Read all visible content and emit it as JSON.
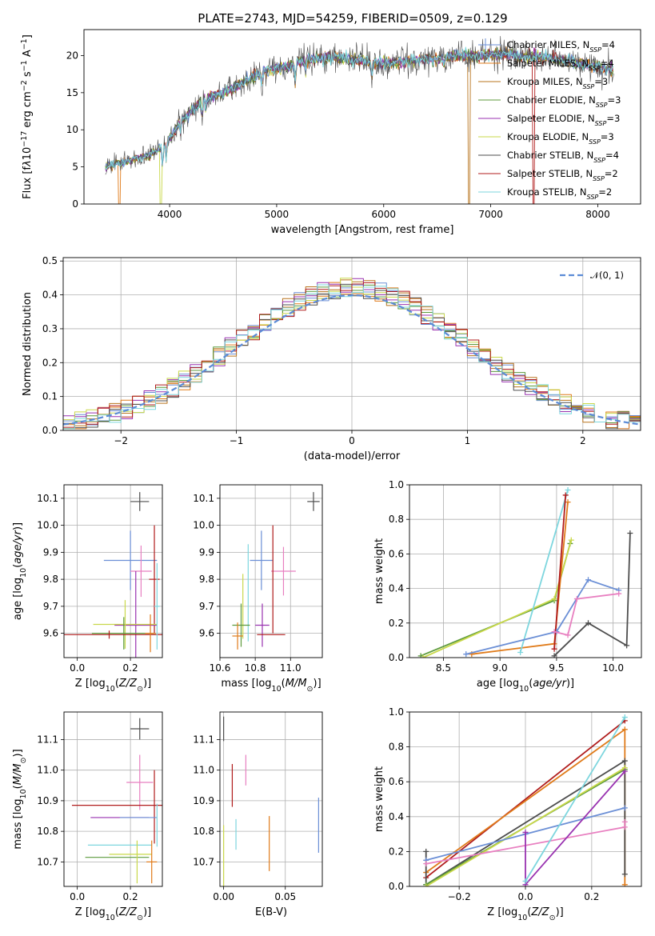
{
  "title": "PLATE=2743, MJD=54259, FIBERID=0509, z=0.129",
  "colors": {
    "Chabrier MILES": "#6b8fd6",
    "Salpeter MILES": "#e07b1a",
    "Kroupa MILES": "#b8741e",
    "Chabrier ELODIE": "#5c9a3c",
    "Salpeter ELODIE": "#9932b0",
    "Kroupa ELODIE": "#c9d84a",
    "Chabrier STELIB": "#4d4d4d",
    "Salpeter STELIB": "#b01c1c",
    "Kroupa STELIB": "#7dd6de",
    "pink": "#e87fc0",
    "normal": "#5b8bd6"
  },
  "chart_data": [
    {
      "id": "spectrum",
      "type": "line",
      "title": "PLATE=2743, MJD=54259, FIBERID=0509, z=0.129",
      "xlabel": "wavelength [Angstrom, rest frame]",
      "ylabel": "Flux [fλ10⁻¹⁷ erg cm⁻² s⁻¹ A⁻¹]",
      "xlim": [
        3200,
        8400
      ],
      "ylim": [
        0,
        23.5
      ],
      "xticks": [
        4000,
        5000,
        6000,
        7000,
        8000
      ],
      "yticks": [
        0,
        5,
        10,
        15,
        20
      ],
      "legend_position": "upper right",
      "legend": [
        {
          "name": "Chabrier MILES",
          "nssp": "4"
        },
        {
          "name": "Salpeter MILES",
          "nssp": "4"
        },
        {
          "name": "Kroupa MILES",
          "nssp": "3"
        },
        {
          "name": "Chabrier ELODIE",
          "nssp": "3"
        },
        {
          "name": "Salpeter ELODIE",
          "nssp": "3"
        },
        {
          "name": "Kroupa ELODIE",
          "nssp": "3"
        },
        {
          "name": "Chabrier STELIB",
          "nssp": "4"
        },
        {
          "name": "Salpeter STELIB",
          "nssp": "2"
        },
        {
          "name": "Kroupa STELIB",
          "nssp": "2"
        }
      ],
      "continuum_x": [
        3400,
        3600,
        3800,
        3950,
        4100,
        4300,
        4500,
        4700,
        4900,
        5100,
        5300,
        5500,
        5700,
        5900,
        6100,
        6300,
        6500,
        6700,
        6900,
        7100,
        7300,
        7500,
        7700,
        7900,
        8150
      ],
      "continuum_y": [
        5.0,
        5.8,
        6.5,
        8.0,
        11.0,
        14.0,
        15.0,
        16.5,
        18.0,
        18.5,
        19.5,
        19.8,
        19.5,
        19.0,
        19.0,
        19.3,
        19.6,
        20.0,
        20.0,
        20.2,
        20.0,
        19.8,
        19.3,
        18.8,
        18.0
      ],
      "edge_drops": [
        {
          "model": "Salpeter MILES",
          "x": 3530
        },
        {
          "model": "Kroupa ELODIE",
          "x": 3920
        },
        {
          "model": "Kroupa MILES",
          "x": 6800
        },
        {
          "model": "Salpeter STELIB",
          "x": 7400
        }
      ]
    },
    {
      "id": "residuals",
      "type": "histogram",
      "xlabel": "(data-model)/error",
      "ylabel": "Normed distribution",
      "xlim": [
        -2.5,
        2.5
      ],
      "ylim": [
        0,
        0.51
      ],
      "xticks": [
        -2,
        -1,
        0,
        1,
        2
      ],
      "yticks": [
        0.0,
        0.1,
        0.2,
        0.3,
        0.4,
        0.5
      ],
      "grid": true,
      "legend": [
        "𝒩(0, 1)"
      ],
      "legend_position": "upper right",
      "bin_width": 0.1
    },
    {
      "id": "age-vs-Z",
      "type": "errorbar",
      "xlabel": "Z [log₁₀(Z/Z⊙)]",
      "ylabel": "age  [log₁₀(age/yr)]",
      "xlim": [
        -0.05,
        0.32
      ],
      "ylim": [
        9.51,
        10.15
      ],
      "xticks": [
        0.0,
        0.2
      ],
      "yticks": [
        9.6,
        9.7,
        9.8,
        9.9,
        10.0,
        10.1
      ],
      "grid": true,
      "points": [
        {
          "c": "Chabrier STELIB",
          "x": 0.235,
          "y": 10.088,
          "xe": 0.035,
          "ye": 0.035
        },
        {
          "c": "Chabrier MILES",
          "x": 0.2,
          "y": 9.87,
          "xe": 0.1,
          "ye": 0.11
        },
        {
          "c": "pink",
          "x": 0.24,
          "y": 9.83,
          "xe": 0.04,
          "ye": 0.095
        },
        {
          "c": "Salpeter STELIB",
          "x": 0.29,
          "y": 9.8,
          "xe": 0.02,
          "ye": 0.2
        },
        {
          "c": "Salpeter ELODIE",
          "x": 0.22,
          "y": 9.63,
          "xe": 0.08,
          "ye": 0.2
        },
        {
          "c": "Kroupa ELODIE",
          "x": 0.18,
          "y": 9.633,
          "xe": 0.12,
          "ye": 0.09
        },
        {
          "c": "Chabrier ELODIE",
          "x": 0.175,
          "y": 9.6,
          "xe": 0.12,
          "ye": 0.06
        },
        {
          "c": "Salpeter STELIB",
          "x": 0.12,
          "y": 9.595,
          "xe": 0.2,
          "ye": 0.015
        },
        {
          "c": "Salpeter MILES",
          "x": 0.275,
          "y": 9.6,
          "xe": 0.02,
          "ye": 0.07
        },
        {
          "c": "Kroupa STELIB",
          "x": 0.3,
          "y": 9.7,
          "xe": 0.01,
          "ye": 0.16
        }
      ]
    },
    {
      "id": "age-vs-mass",
      "type": "errorbar",
      "xlabel": "mass [log₁₀(M/M⊙)]",
      "xlim": [
        10.6,
        11.18
      ],
      "ylim": [
        9.51,
        10.15
      ],
      "xticks": [
        10.6,
        10.8,
        11.0
      ],
      "yticks": [
        9.6,
        9.7,
        9.8,
        9.9,
        10.0,
        10.1
      ],
      "grid": true,
      "points": [
        {
          "c": "Chabrier STELIB",
          "x": 11.13,
          "y": 10.088,
          "xe": 0.035,
          "ye": 0.035
        },
        {
          "c": "Chabrier MILES",
          "x": 10.835,
          "y": 9.87,
          "xe": 0.065,
          "ye": 0.11
        },
        {
          "c": "pink",
          "x": 10.96,
          "y": 9.83,
          "xe": 0.07,
          "ye": 0.09
        },
        {
          "c": "Salpeter STELIB",
          "x": 10.9,
          "y": 9.8,
          "xe": 0.0,
          "ye": 0.2
        },
        {
          "c": "Kroupa STELIB",
          "x": 10.76,
          "y": 9.75,
          "xe": 0.0,
          "ye": 0.18
        },
        {
          "c": "Salpeter ELODIE",
          "x": 10.84,
          "y": 9.63,
          "xe": 0.04,
          "ye": 0.08
        },
        {
          "c": "Kroupa ELODIE",
          "x": 10.73,
          "y": 9.7,
          "xe": 0.0,
          "ye": 0.12
        },
        {
          "c": "Chabrier ELODIE",
          "x": 10.72,
          "y": 9.63,
          "xe": 0.05,
          "ye": 0.08
        },
        {
          "c": "Salpeter MILES",
          "x": 10.7,
          "y": 9.59,
          "xe": 0.03,
          "ye": 0.05
        },
        {
          "c": "Salpeter STELIB",
          "x": 10.89,
          "y": 9.595,
          "xe": 0.08,
          "ye": 0.0
        }
      ]
    },
    {
      "id": "weight-vs-age",
      "type": "line",
      "xlabel": "age  [log₁₀(age/yr)]",
      "ylabel": "mass weight",
      "xlim": [
        8.2,
        10.25
      ],
      "ylim": [
        0,
        1.0
      ],
      "xticks": [
        8.5,
        9.0,
        9.5,
        10.0
      ],
      "yticks": [
        0.0,
        0.2,
        0.4,
        0.6,
        0.8,
        1.0
      ],
      "grid": true,
      "series": [
        {
          "c": "Chabrier ELODIE",
          "x": [
            8.3,
            9.48,
            9.62
          ],
          "y": [
            0.01,
            0.33,
            0.66
          ]
        },
        {
          "c": "Kroupa ELODIE",
          "x": [
            8.32,
            9.48,
            9.63
          ],
          "y": [
            0.0,
            0.34,
            0.68
          ]
        },
        {
          "c": "Salpeter MILES",
          "x": [
            8.75,
            9.48,
            9.6
          ],
          "y": [
            0.02,
            0.08,
            0.9
          ]
        },
        {
          "c": "Kroupa STELIB",
          "x": [
            9.18,
            9.6
          ],
          "y": [
            0.03,
            0.97
          ]
        },
        {
          "c": "Salpeter STELIB",
          "x": [
            9.48,
            9.58
          ],
          "y": [
            0.05,
            0.94
          ]
        },
        {
          "c": "Chabrier MILES",
          "x": [
            8.7,
            9.5,
            9.78,
            10.05
          ],
          "y": [
            0.02,
            0.15,
            0.45,
            0.39
          ]
        },
        {
          "c": "pink",
          "x": [
            9.48,
            9.6,
            9.68,
            10.05
          ],
          "y": [
            0.15,
            0.13,
            0.34,
            0.37
          ]
        },
        {
          "c": "Chabrier STELIB",
          "x": [
            9.48,
            9.78,
            10.12,
            10.15
          ],
          "y": [
            0.01,
            0.2,
            0.07,
            0.72
          ]
        }
      ]
    },
    {
      "id": "mass-vs-Z",
      "type": "errorbar",
      "xlabel": "Z [log₁₀(Z/Z⊙)]",
      "ylabel": "mass [log₁₀(M/M⊙)]",
      "xlim": [
        -0.05,
        0.32
      ],
      "ylim": [
        10.62,
        11.19
      ],
      "xticks": [
        0.0,
        0.2
      ],
      "yticks": [
        10.7,
        10.8,
        10.9,
        11.0,
        11.1
      ],
      "grid": true,
      "points": [
        {
          "c": "Chabrier STELIB",
          "x": 0.235,
          "y": 11.135,
          "xe": 0.035,
          "ye": 0.035
        },
        {
          "c": "pink",
          "x": 0.235,
          "y": 10.96,
          "xe": 0.05,
          "ye": 0.09
        },
        {
          "c": "Salpeter STELIB",
          "x": 0.15,
          "y": 10.885,
          "xe": 0.17,
          "ye": 0.0
        },
        {
          "c": "Salpeter STELIB",
          "x": 0.29,
          "y": 10.88,
          "xe": 0.0,
          "ye": 0.12
        },
        {
          "c": "Salpeter ELODIE",
          "x": 0.16,
          "y": 10.845,
          "xe": 0.11,
          "ye": 0.0
        },
        {
          "c": "Chabrier MILES",
          "x": 0.23,
          "y": 10.845,
          "xe": 0.07,
          "ye": 0.0
        },
        {
          "c": "Kroupa STELIB",
          "x": 0.16,
          "y": 10.755,
          "xe": 0.12,
          "ye": 0.0
        },
        {
          "c": "Kroupa ELODIE",
          "x": 0.2,
          "y": 10.725,
          "xe": 0.08,
          "ye": 0.0
        },
        {
          "c": "Chabrier ELODIE",
          "x": 0.15,
          "y": 10.715,
          "xe": 0.12,
          "ye": 0.0
        },
        {
          "c": "Salpeter MILES",
          "x": 0.28,
          "y": 10.7,
          "xe": 0.02,
          "ye": 0.07
        },
        {
          "c": "Kroupa ELODIE",
          "x": 0.225,
          "y": 10.7,
          "xe": 0.0,
          "ye": 0.07
        },
        {
          "c": "Kroupa STELIB",
          "x": 0.3,
          "y": 10.82,
          "xe": 0.0,
          "ye": 0.07
        }
      ]
    },
    {
      "id": "mass-vs-EBV",
      "type": "errorbar",
      "xlabel": "E(B-V)",
      "xlim": [
        -0.003,
        0.08
      ],
      "ylim": [
        10.62,
        11.19
      ],
      "xticks": [
        0.0,
        0.05
      ],
      "yticks": [
        10.7,
        10.8,
        10.9,
        11.0,
        11.1
      ],
      "grid": true,
      "points": [
        {
          "c": "Chabrier STELIB",
          "x": 0.0,
          "y": 11.135,
          "xe": 0.0,
          "ye": 0.04
        },
        {
          "c": "pink",
          "x": 0.018,
          "y": 11.0,
          "xe": 0.0,
          "ye": 0.05
        },
        {
          "c": "Salpeter STELIB",
          "x": 0.007,
          "y": 10.95,
          "xe": 0.0,
          "ye": 0.07
        },
        {
          "c": "Chabrier MILES",
          "x": 0.077,
          "y": 10.82,
          "xe": 0.0,
          "ye": 0.09
        },
        {
          "c": "Salpeter MILES",
          "x": 0.037,
          "y": 10.76,
          "xe": 0.0,
          "ye": 0.09
        },
        {
          "c": "Kroupa STELIB",
          "x": 0.01,
          "y": 10.79,
          "xe": 0.0,
          "ye": 0.05
        },
        {
          "c": "Kroupa ELODIE",
          "x": 0.0,
          "y": 10.72,
          "xe": 0.0,
          "ye": 0.1
        }
      ]
    },
    {
      "id": "weight-vs-Z",
      "type": "line",
      "xlabel": "Z [log₁₀(Z/Z⊙)]",
      "ylabel": "mass weight",
      "xlim": [
        -0.35,
        0.35
      ],
      "ylim": [
        0,
        1.0
      ],
      "xticks": [
        -0.2,
        0.0,
        0.2
      ],
      "yticks": [
        0.0,
        0.2,
        0.4,
        0.6,
        0.8,
        1.0
      ],
      "grid": true,
      "series": [
        {
          "c": "Salpeter STELIB",
          "x": [
            -0.3,
            0.3
          ],
          "y": [
            0.05,
            0.95
          ]
        },
        {
          "c": "Salpeter MILES",
          "x": [
            -0.3,
            0.3,
            0.3
          ],
          "y": [
            0.08,
            0.9,
            0.01
          ]
        },
        {
          "c": "Chabrier STELIB",
          "x": [
            -0.3,
            -0.3,
            0.3,
            0.3
          ],
          "y": [
            0.2,
            0.01,
            0.72,
            0.07
          ]
        },
        {
          "c": "Chabrier ELODIE",
          "x": [
            -0.3,
            0.3
          ],
          "y": [
            0.01,
            0.67
          ]
        },
        {
          "c": "Kroupa ELODIE",
          "x": [
            -0.3,
            0.3
          ],
          "y": [
            0.0,
            0.68
          ]
        },
        {
          "c": "Chabrier MILES",
          "x": [
            -0.3,
            0.0,
            0.3
          ],
          "y": [
            0.15,
            0.3,
            0.45
          ]
        },
        {
          "c": "pink",
          "x": [
            -0.3,
            0.3,
            0.3
          ],
          "y": [
            0.13,
            0.34,
            0.37
          ]
        },
        {
          "c": "Salpeter ELODIE",
          "x": [
            0.0,
            0.0,
            0.3
          ],
          "y": [
            0.31,
            0.01,
            0.66
          ]
        },
        {
          "c": "Kroupa STELIB",
          "x": [
            0.0,
            0.3
          ],
          "y": [
            0.03,
            0.97
          ]
        }
      ]
    }
  ]
}
